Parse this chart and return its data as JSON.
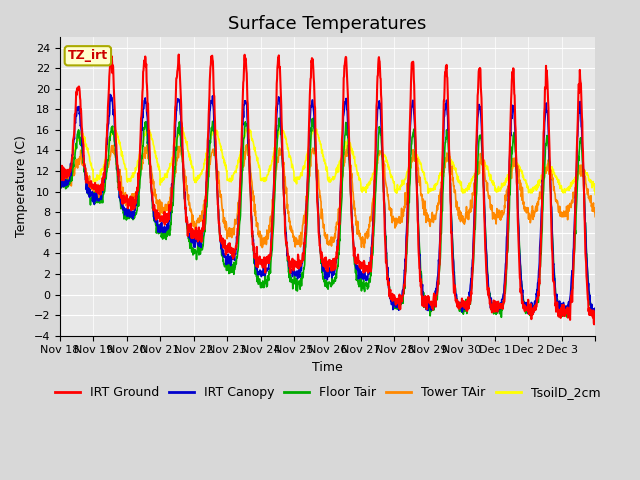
{
  "title": "Surface Temperatures",
  "xlabel": "Time",
  "ylabel": "Temperature (C)",
  "ylim": [
    -4,
    25
  ],
  "yticks": [
    -4,
    -2,
    0,
    2,
    4,
    6,
    8,
    10,
    12,
    14,
    16,
    18,
    20,
    22,
    24
  ],
  "n_days": 16,
  "xtick_positions": [
    0,
    1,
    2,
    3,
    4,
    5,
    6,
    7,
    8,
    9,
    10,
    11,
    12,
    13,
    14,
    15,
    16
  ],
  "xtick_labels": [
    "Nov 18",
    "Nov 19",
    "Nov 20",
    "Nov 21",
    "Nov 22",
    "Nov 23",
    "Nov 24",
    "Nov 25",
    "Nov 26",
    "Nov 27",
    "Nov 28",
    "Nov 29",
    "Nov 30",
    "Dec 1",
    "Dec 2",
    "Dec 3",
    ""
  ],
  "series_colors": {
    "IRT Ground": "#ff0000",
    "IRT Canopy": "#0000cc",
    "Floor Tair": "#00aa00",
    "Tower TAir": "#ff8800",
    "TsoilD_2cm": "#ffff00"
  },
  "legend_entries": [
    "IRT Ground",
    "IRT Canopy",
    "Floor Tair",
    "Tower TAir",
    "TsoilD_2cm"
  ],
  "annotation_text": "TZ_irt",
  "annotation_color": "#cc0000",
  "annotation_bg": "#ffffcc",
  "annotation_border": "#aaaa00",
  "background_color": "#d8d8d8",
  "plot_bg_color": "#e8e8e8",
  "title_fontsize": 13,
  "axis_fontsize": 9,
  "tick_fontsize": 8,
  "legend_fontsize": 9
}
